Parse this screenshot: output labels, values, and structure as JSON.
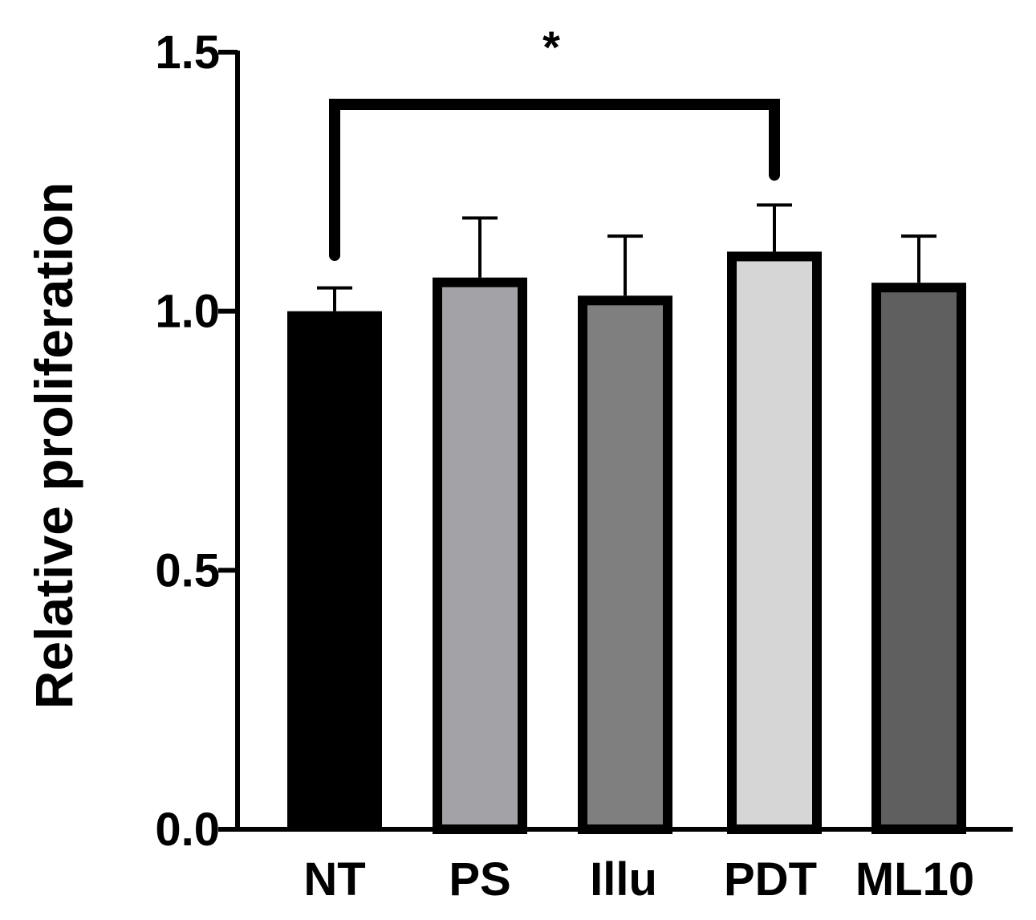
{
  "chart_data": {
    "type": "bar",
    "categories": [
      "NT",
      "PS",
      "Illu",
      "PDT",
      "ML10"
    ],
    "values": [
      1.0,
      1.065,
      1.03,
      1.115,
      1.055
    ],
    "errors": [
      0.045,
      0.115,
      0.115,
      0.09,
      0.09
    ],
    "colors": [
      "#000000",
      "#a3a3a7",
      "#7f7f7f",
      "#d6d6d6",
      "#5f5f5f"
    ],
    "ylabel": "Relative proliferation",
    "xlabel": "",
    "title": "",
    "ylim": [
      0,
      1.5
    ],
    "yticks": [
      "0.0",
      "0.5",
      "1.0",
      "1.5"
    ],
    "significance": {
      "from": "NT",
      "to": "PDT",
      "label": "*"
    }
  }
}
